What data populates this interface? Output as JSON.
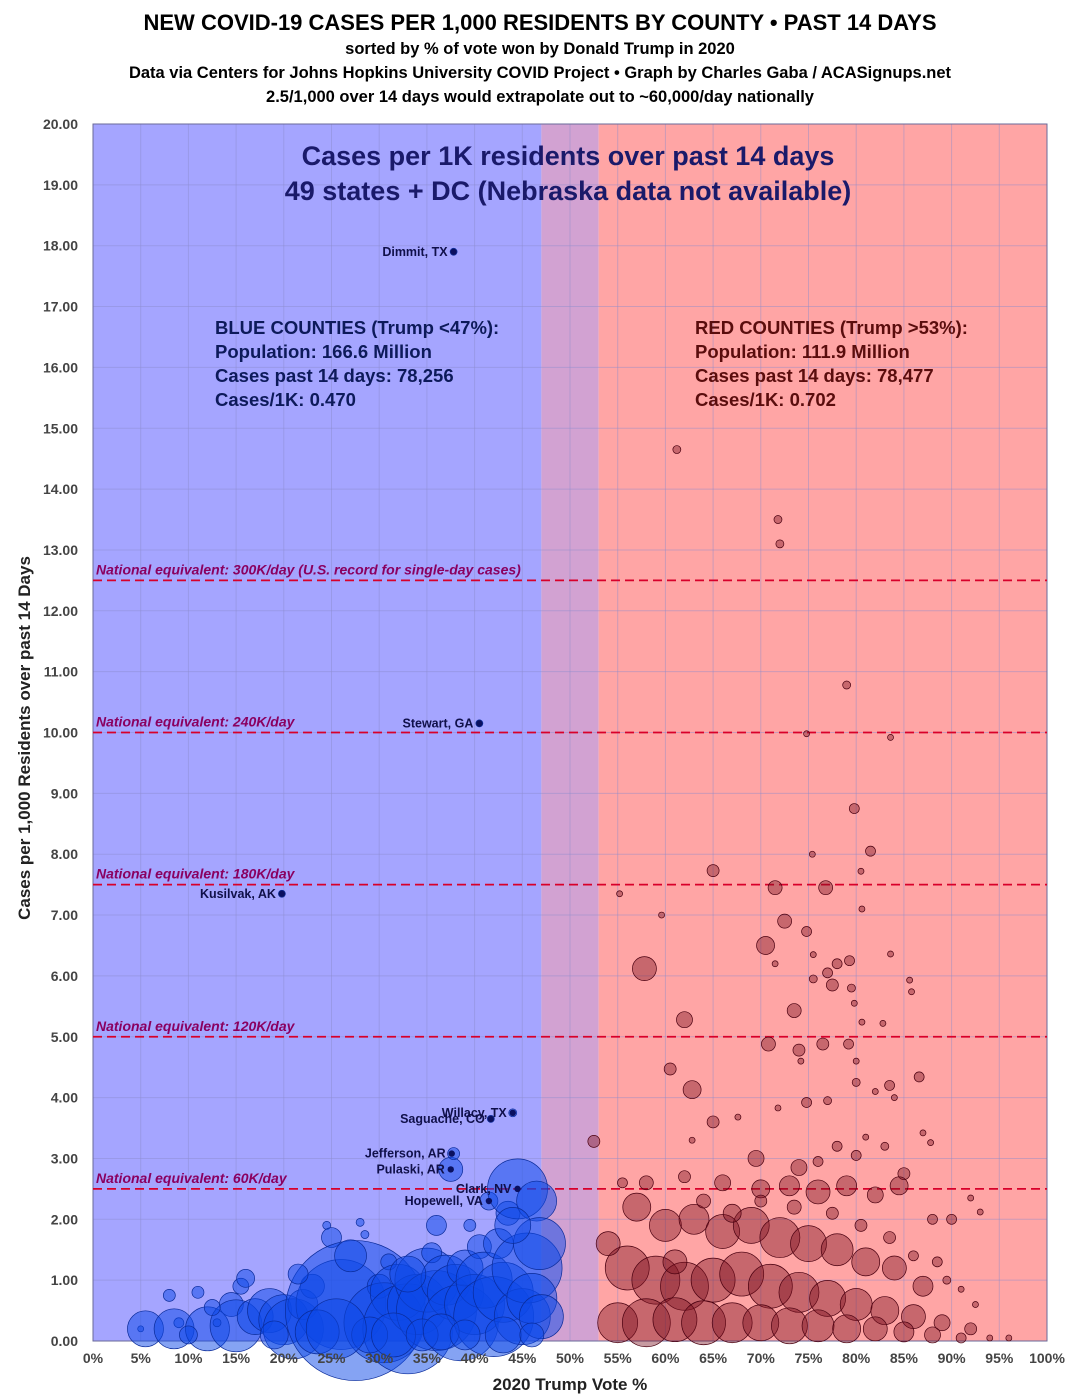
{
  "header": {
    "title": "NEW COVID-19 CASES PER 1,000 RESIDENTS BY COUNTY • PAST 14 DAYS",
    "subtitle1": "sorted by % of vote won by Donald Trump in 2020",
    "subtitle2": "Data via Centers for Johns Hopkins University COVID Project • Graph by Charles Gaba / ACASignups.net",
    "subtitle3": "2.5/1,000 over 14 days would extrapolate out to ~60,000/day nationally"
  },
  "chart_data": {
    "type": "scatter",
    "xlabel": "2020 Trump Vote %",
    "ylabel": "Cases per 1,000 Residents over past 14 Days",
    "xlim": [
      0,
      100
    ],
    "ylim": [
      0,
      20
    ],
    "x_ticks": [
      "0%",
      "5%",
      "10%",
      "15%",
      "20%",
      "25%",
      "30%",
      "35%",
      "40%",
      "45%",
      "50%",
      "55%",
      "60%",
      "65%",
      "70%",
      "75%",
      "80%",
      "85%",
      "90%",
      "95%",
      "100%"
    ],
    "y_ticks": [
      "0.00",
      "1.00",
      "2.00",
      "3.00",
      "4.00",
      "5.00",
      "6.00",
      "7.00",
      "8.00",
      "9.00",
      "10.00",
      "11.00",
      "12.00",
      "13.00",
      "14.00",
      "15.00",
      "16.00",
      "17.00",
      "18.00",
      "19.00",
      "20.00"
    ],
    "grid": true,
    "regions": [
      {
        "from": 0,
        "to": 47,
        "color": "#a5a5ff"
      },
      {
        "from": 47,
        "to": 53,
        "color": "#d2a2d2"
      },
      {
        "from": 53,
        "to": 100,
        "color": "#ffa5a5"
      }
    ],
    "inner_title": [
      "Cases per 1K residents over past 14 days",
      "49 states + DC (Nebraska data not available)"
    ],
    "blue_summary": [
      "BLUE COUNTIES (Trump <47%):",
      "Population: 166.6 Million",
      "Cases past 14 days: 78,256",
      "Cases/1K: 0.470"
    ],
    "red_summary": [
      "RED COUNTIES (Trump >53%):",
      "Population: 111.9 Million",
      "Cases past 14 days: 78,477",
      "Cases/1K: 0.702"
    ],
    "reference_lines": [
      {
        "y": 12.5,
        "label": "National equivalent: 300K/day (U.S. record for single-day cases)"
      },
      {
        "y": 10.0,
        "label": "National equivalent: 240K/day"
      },
      {
        "y": 7.5,
        "label": "National equivalent: 180K/day"
      },
      {
        "y": 5.0,
        "label": "National equivalent: 120K/day"
      },
      {
        "y": 2.5,
        "label": "National equivalent: 60K/day"
      }
    ],
    "labeled_points": [
      {
        "name": "Dimmit, TX",
        "x": 37.8,
        "y": 17.9
      },
      {
        "name": "Stewart, GA",
        "x": 40.5,
        "y": 10.15
      },
      {
        "name": "Kusilvak, AK",
        "x": 19.8,
        "y": 7.35
      },
      {
        "name": "Willacy, TX",
        "x": 44.0,
        "y": 3.75
      },
      {
        "name": "Saguache, CO",
        "x": 41.7,
        "y": 3.65
      },
      {
        "name": "Jefferson, AR",
        "x": 37.6,
        "y": 3.08
      },
      {
        "name": "Pulaski, AR",
        "x": 37.5,
        "y": 2.82
      },
      {
        "name": "Clark, NV",
        "x": 44.5,
        "y": 2.5
      },
      {
        "name": "Hopewell, VA",
        "x": 41.5,
        "y": 2.3
      }
    ],
    "blue_points": [
      [
        5,
        0.2,
        3
      ],
      [
        5.5,
        0.2,
        18
      ],
      [
        9,
        0.3,
        5
      ],
      [
        8.5,
        0.2,
        20
      ],
      [
        11,
        0.8,
        6
      ],
      [
        12,
        0.2,
        22
      ],
      [
        13,
        0.3,
        4
      ],
      [
        14.5,
        0.6,
        12
      ],
      [
        15.5,
        0.9,
        8
      ],
      [
        16,
        1.03,
        9
      ],
      [
        15,
        0.25,
        26
      ],
      [
        17,
        0.4,
        18
      ],
      [
        18.5,
        0.5,
        22
      ],
      [
        20,
        0.35,
        25
      ],
      [
        21,
        0.2,
        30
      ],
      [
        22,
        0.6,
        15
      ],
      [
        23,
        0.9,
        12
      ],
      [
        24.5,
        1.9,
        4
      ],
      [
        25,
        1.7,
        10
      ],
      [
        26,
        0.6,
        45
      ],
      [
        27.5,
        0.5,
        70
      ],
      [
        28,
        1.95,
        4
      ],
      [
        28.5,
        1.75,
        4
      ],
      [
        30,
        0.9,
        12
      ],
      [
        30.5,
        0.3,
        40
      ],
      [
        31,
        1.3,
        8
      ],
      [
        32,
        0.8,
        28
      ],
      [
        33,
        0.2,
        45
      ],
      [
        34,
        0.6,
        30
      ],
      [
        35,
        1.0,
        32
      ],
      [
        35.5,
        1.45,
        10
      ],
      [
        36,
        0.5,
        40
      ],
      [
        37,
        1.0,
        25
      ],
      [
        37.5,
        2.82,
        12
      ],
      [
        37.8,
        3.08,
        6
      ],
      [
        38,
        0.8,
        28
      ],
      [
        38.5,
        0.3,
        38
      ],
      [
        39,
        1.2,
        18
      ],
      [
        39.5,
        1.9,
        6
      ],
      [
        40,
        0.6,
        30
      ],
      [
        40.5,
        1.55,
        12
      ],
      [
        41,
        1.0,
        28
      ],
      [
        41.5,
        2.3,
        9
      ],
      [
        42,
        0.4,
        40
      ],
      [
        42.5,
        1.6,
        15
      ],
      [
        43,
        0.8,
        30
      ],
      [
        43.5,
        2.1,
        12
      ],
      [
        44,
        3.75,
        4
      ],
      [
        44.5,
        2.5,
        30
      ],
      [
        45,
        0.4,
        28
      ],
      [
        45.5,
        1.2,
        35
      ],
      [
        46,
        0.7,
        25
      ],
      [
        46.5,
        2.3,
        20
      ],
      [
        47,
        0.4,
        22
      ],
      [
        46.8,
        1.6,
        26
      ],
      [
        37.8,
        17.9,
        3.5
      ],
      [
        40.5,
        10.15,
        3.5
      ],
      [
        19.8,
        7.35,
        3.5
      ],
      [
        41.7,
        3.65,
        3.5
      ],
      [
        8,
        0.75,
        6
      ],
      [
        10,
        0.1,
        9
      ],
      [
        12.5,
        0.55,
        8
      ],
      [
        19,
        0.1,
        14
      ],
      [
        21.5,
        1.1,
        10
      ],
      [
        23.5,
        0.15,
        22
      ],
      [
        29,
        0.1,
        18
      ],
      [
        31.5,
        0.1,
        22
      ],
      [
        34.5,
        0.1,
        16
      ],
      [
        36.5,
        0.15,
        18
      ],
      [
        39,
        0.1,
        15
      ],
      [
        43,
        0.1,
        18
      ],
      [
        46,
        0.1,
        12
      ],
      [
        25.5,
        0.2,
        30
      ],
      [
        33,
        1.1,
        18
      ],
      [
        27,
        1.4,
        16
      ],
      [
        36,
        1.9,
        10
      ],
      [
        44,
        1.9,
        18
      ]
    ],
    "red_points": [
      [
        61.2,
        14.65,
        4
      ],
      [
        71.8,
        13.5,
        4
      ],
      [
        72,
        13.1,
        4
      ],
      [
        79,
        10.78,
        4
      ],
      [
        74.8,
        9.98,
        3
      ],
      [
        83.6,
        9.92,
        3
      ],
      [
        79.8,
        8.75,
        5
      ],
      [
        81.5,
        8.05,
        5
      ],
      [
        75.4,
        8.0,
        3
      ],
      [
        65,
        7.73,
        6
      ],
      [
        71.5,
        7.45,
        7
      ],
      [
        76.8,
        7.45,
        7
      ],
      [
        80.5,
        7.72,
        3
      ],
      [
        55.2,
        7.35,
        3
      ],
      [
        59.6,
        7.0,
        3
      ],
      [
        80.6,
        7.1,
        3
      ],
      [
        72.5,
        6.9,
        7
      ],
      [
        74.8,
        6.73,
        5
      ],
      [
        70.5,
        6.5,
        9
      ],
      [
        57.8,
        6.12,
        12
      ],
      [
        71.5,
        6.2,
        3
      ],
      [
        75.5,
        6.35,
        3
      ],
      [
        78,
        6.2,
        5
      ],
      [
        79.3,
        6.25,
        5
      ],
      [
        77,
        6.05,
        5
      ],
      [
        75.5,
        5.95,
        4
      ],
      [
        77.5,
        5.85,
        6
      ],
      [
        79.5,
        5.8,
        4
      ],
      [
        79.8,
        5.55,
        3
      ],
      [
        83.6,
        6.36,
        3
      ],
      [
        85.6,
        5.93,
        3
      ],
      [
        85.8,
        5.74,
        3
      ],
      [
        62,
        5.28,
        8
      ],
      [
        73.5,
        5.43,
        7
      ],
      [
        80.6,
        5.24,
        3
      ],
      [
        82.8,
        5.22,
        3
      ],
      [
        70.8,
        4.88,
        7
      ],
      [
        74,
        4.78,
        6
      ],
      [
        76.5,
        4.88,
        6
      ],
      [
        79.2,
        4.88,
        5
      ],
      [
        80,
        4.6,
        3
      ],
      [
        74.2,
        4.6,
        3
      ],
      [
        60.5,
        4.47,
        6
      ],
      [
        62.8,
        4.13,
        9
      ],
      [
        65,
        3.6,
        6
      ],
      [
        71.8,
        3.83,
        3
      ],
      [
        74.8,
        3.92,
        5
      ],
      [
        77,
        3.95,
        4
      ],
      [
        80,
        4.25,
        4
      ],
      [
        82,
        4.1,
        3
      ],
      [
        83.5,
        4.2,
        5
      ],
      [
        84,
        4.0,
        3
      ],
      [
        86.6,
        4.34,
        5
      ],
      [
        87,
        3.42,
        3
      ],
      [
        87.8,
        3.26,
        3
      ],
      [
        52.5,
        3.28,
        6
      ],
      [
        62.8,
        3.3,
        3
      ],
      [
        67.6,
        3.68,
        3
      ],
      [
        69.5,
        3.0,
        8
      ],
      [
        74,
        2.85,
        8
      ],
      [
        76,
        2.95,
        5
      ],
      [
        78,
        3.2,
        5
      ],
      [
        80,
        3.05,
        5
      ],
      [
        81,
        3.35,
        3
      ],
      [
        83,
        3.2,
        4
      ],
      [
        85,
        2.75,
        6
      ],
      [
        84.5,
        2.55,
        9
      ],
      [
        58,
        2.6,
        7
      ],
      [
        62,
        2.7,
        6
      ],
      [
        66,
        2.6,
        8
      ],
      [
        70,
        2.5,
        9
      ],
      [
        73,
        2.55,
        10
      ],
      [
        76,
        2.45,
        12
      ],
      [
        79,
        2.55,
        10
      ],
      [
        82,
        2.4,
        8
      ],
      [
        88,
        2.0,
        5
      ],
      [
        90,
        2.0,
        5
      ],
      [
        92,
        2.35,
        3
      ],
      [
        93,
        2.12,
        3
      ],
      [
        89.5,
        1.0,
        4
      ],
      [
        91,
        0.85,
        3
      ],
      [
        92.5,
        0.6,
        3
      ],
      [
        57,
        2.2,
        14
      ],
      [
        60,
        1.9,
        16
      ],
      [
        63,
        2.0,
        15
      ],
      [
        66,
        1.8,
        17
      ],
      [
        69,
        1.9,
        18
      ],
      [
        72,
        1.7,
        20
      ],
      [
        75,
        1.6,
        18
      ],
      [
        78,
        1.5,
        16
      ],
      [
        81,
        1.3,
        14
      ],
      [
        84,
        1.2,
        12
      ],
      [
        87,
        0.9,
        10
      ],
      [
        56,
        1.2,
        22
      ],
      [
        59,
        1.0,
        24
      ],
      [
        62,
        0.9,
        24
      ],
      [
        65,
        1.0,
        22
      ],
      [
        68,
        1.1,
        22
      ],
      [
        71,
        0.9,
        22
      ],
      [
        74,
        0.8,
        20
      ],
      [
        77,
        0.7,
        18
      ],
      [
        80,
        0.6,
        16
      ],
      [
        83,
        0.5,
        14
      ],
      [
        86,
        0.4,
        12
      ],
      [
        89,
        0.3,
        8
      ],
      [
        92,
        0.2,
        6
      ],
      [
        55,
        0.3,
        20
      ],
      [
        58,
        0.3,
        24
      ],
      [
        61,
        0.35,
        22
      ],
      [
        64,
        0.3,
        22
      ],
      [
        67,
        0.3,
        20
      ],
      [
        70,
        0.3,
        18
      ],
      [
        73,
        0.25,
        18
      ],
      [
        76,
        0.25,
        16
      ],
      [
        79,
        0.2,
        14
      ],
      [
        82,
        0.2,
        12
      ],
      [
        85,
        0.15,
        10
      ],
      [
        88,
        0.1,
        8
      ],
      [
        91,
        0.05,
        5
      ],
      [
        94,
        0.05,
        3
      ],
      [
        96,
        0.05,
        3
      ],
      [
        54,
        1.6,
        12
      ],
      [
        55.5,
        2.6,
        5
      ],
      [
        61,
        1.3,
        12
      ],
      [
        64,
        2.3,
        7
      ],
      [
        67,
        2.1,
        9
      ],
      [
        70,
        2.3,
        6
      ],
      [
        73.5,
        2.2,
        7
      ],
      [
        77.5,
        2.1,
        6
      ],
      [
        80.5,
        1.9,
        6
      ],
      [
        83.5,
        1.7,
        6
      ],
      [
        86,
        1.4,
        5
      ],
      [
        88.5,
        1.3,
        5
      ]
    ]
  }
}
